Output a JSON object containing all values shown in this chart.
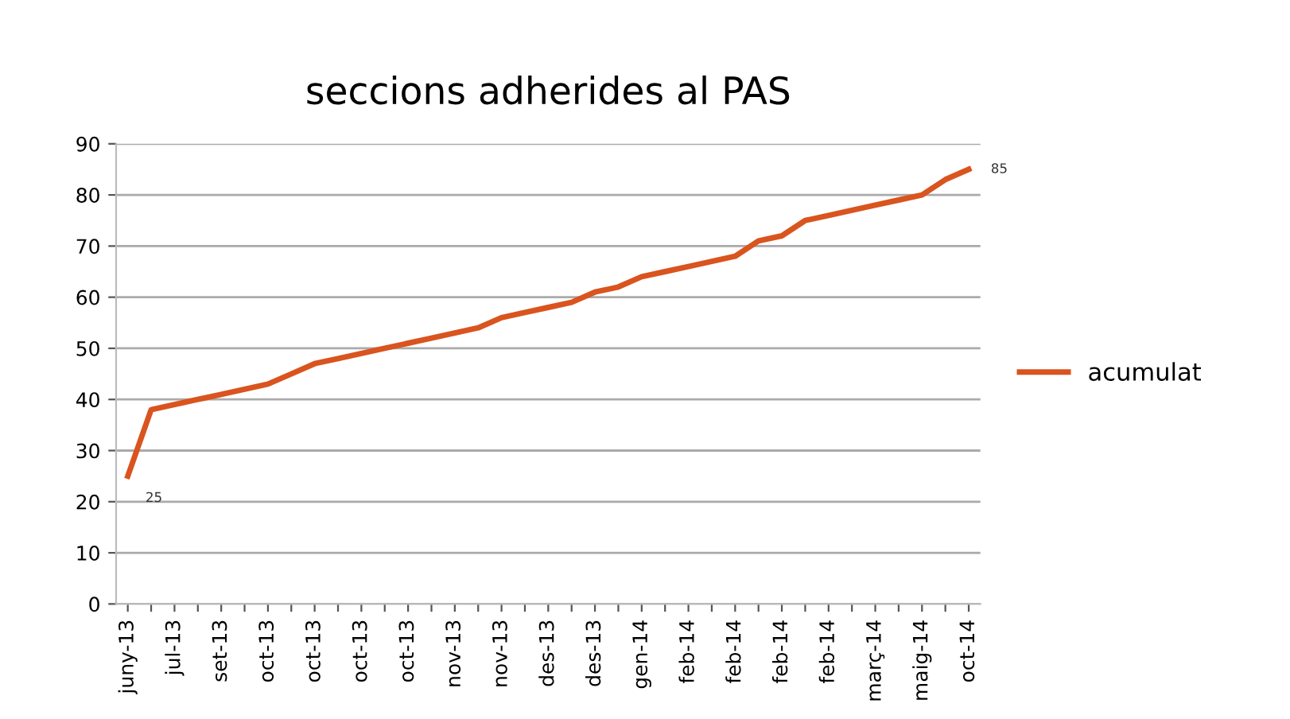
{
  "chart_data": {
    "type": "line",
    "title": "seccions adherides al PAS",
    "categories": [
      "juny-13",
      null,
      "jul-13",
      null,
      "set-13",
      null,
      "oct-13",
      null,
      "oct-13",
      null,
      "oct-13",
      null,
      "oct-13",
      null,
      "nov-13",
      null,
      "nov-13",
      null,
      "des-13",
      null,
      "des-13",
      null,
      "gen-14",
      null,
      "feb-14",
      null,
      "feb-14",
      null,
      "feb-14",
      null,
      "feb-14",
      null,
      "març-14",
      null,
      "maig-14",
      null,
      "oct-14"
    ],
    "series": [
      {
        "name": "acumulat",
        "color": "#d9541e",
        "values": [
          25,
          38,
          39,
          40,
          41,
          42,
          43,
          45,
          47,
          48,
          49,
          50,
          51,
          52,
          53,
          54,
          56,
          57,
          58,
          59,
          61,
          62,
          64,
          65,
          66,
          67,
          68,
          71,
          72,
          75,
          76,
          77,
          78,
          79,
          80,
          83,
          85
        ],
        "value_labels": [
          "25",
          null,
          null,
          null,
          null,
          null,
          null,
          null,
          null,
          null,
          null,
          null,
          null,
          null,
          null,
          null,
          null,
          null,
          null,
          null,
          null,
          null,
          null,
          null,
          null,
          null,
          null,
          null,
          null,
          null,
          null,
          null,
          null,
          null,
          null,
          null,
          "85"
        ]
      }
    ],
    "ylim": [
      0,
      90
    ],
    "yticks": [
      0,
      10,
      20,
      30,
      40,
      50,
      60,
      70,
      80,
      90
    ],
    "grid": "y",
    "legend": "right",
    "marker": "none",
    "line_style": "solid"
  }
}
